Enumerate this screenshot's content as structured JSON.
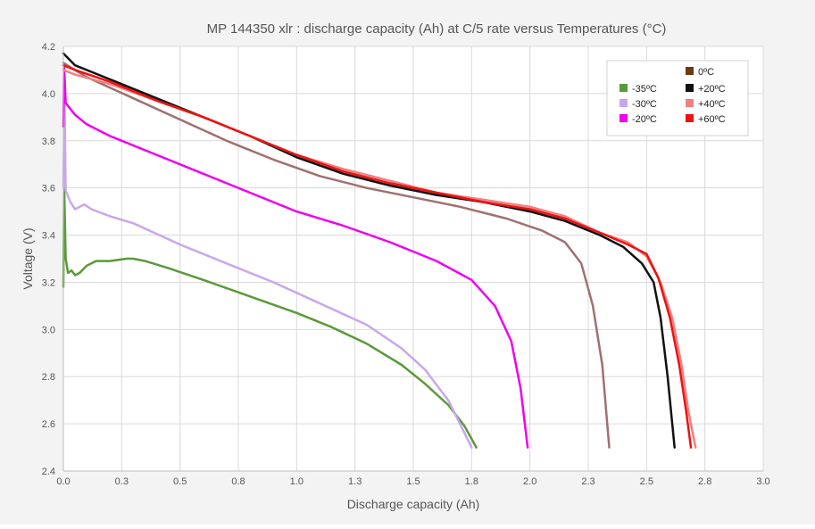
{
  "chart_data": {
    "type": "line",
    "title": "MP 144350 xlr : discharge capacity (Ah) at C/5 rate versus Temperatures (°C)",
    "xlabel": "Discharge capacity (Ah)",
    "ylabel": "Voltage (V)",
    "xlim": [
      0,
      3.0
    ],
    "ylim": [
      2.4,
      4.2
    ],
    "xticks": [
      0.0,
      0.25,
      0.5,
      0.75,
      1.0,
      1.25,
      1.5,
      1.75,
      2.0,
      2.25,
      2.5,
      2.75,
      3.0
    ],
    "xtick_labels": [
      "0.0",
      "0.3",
      "0.5",
      "0.8",
      "1.0",
      "1.3",
      "1.5",
      "1.8",
      "2.0",
      "2.3",
      "2.5",
      "2.8",
      "3.0"
    ],
    "yticks": [
      2.4,
      2.6,
      2.8,
      3.0,
      3.2,
      3.4,
      3.6,
      3.8,
      4.0,
      4.2
    ],
    "ytick_labels": [
      "2.4",
      "2.6",
      "2.8",
      "3.0",
      "3.2",
      "3.4",
      "3.6",
      "3.8",
      "4.0",
      "4.2"
    ],
    "grid": true,
    "legend_position": "top-right",
    "series": [
      {
        "name": "-35ºC",
        "color": "#5a9a3a",
        "points": [
          [
            0,
            3.18
          ],
          [
            0.003,
            3.63
          ],
          [
            0.01,
            3.3
          ],
          [
            0.02,
            3.24
          ],
          [
            0.035,
            3.25
          ],
          [
            0.05,
            3.23
          ],
          [
            0.07,
            3.24
          ],
          [
            0.1,
            3.27
          ],
          [
            0.14,
            3.29
          ],
          [
            0.2,
            3.29
          ],
          [
            0.27,
            3.3
          ],
          [
            0.3,
            3.3
          ],
          [
            0.35,
            3.29
          ],
          [
            0.45,
            3.26
          ],
          [
            0.6,
            3.21
          ],
          [
            0.8,
            3.14
          ],
          [
            1.0,
            3.07
          ],
          [
            1.15,
            3.01
          ],
          [
            1.3,
            2.94
          ],
          [
            1.45,
            2.85
          ],
          [
            1.55,
            2.77
          ],
          [
            1.65,
            2.68
          ],
          [
            1.72,
            2.59
          ],
          [
            1.77,
            2.5
          ]
        ]
      },
      {
        "name": "-30ºC",
        "color": "#c9a6ee",
        "points": [
          [
            0,
            3.6
          ],
          [
            0.005,
            3.98
          ],
          [
            0.01,
            3.59
          ],
          [
            0.03,
            3.54
          ],
          [
            0.05,
            3.51
          ],
          [
            0.07,
            3.52
          ],
          [
            0.09,
            3.53
          ],
          [
            0.12,
            3.51
          ],
          [
            0.2,
            3.48
          ],
          [
            0.3,
            3.45
          ],
          [
            0.5,
            3.36
          ],
          [
            0.7,
            3.28
          ],
          [
            0.9,
            3.2
          ],
          [
            1.1,
            3.11
          ],
          [
            1.3,
            3.02
          ],
          [
            1.45,
            2.92
          ],
          [
            1.55,
            2.83
          ],
          [
            1.65,
            2.7
          ],
          [
            1.7,
            2.6
          ],
          [
            1.75,
            2.5
          ]
        ]
      },
      {
        "name": "-20ºC",
        "color": "#ee00ee",
        "points": [
          [
            0,
            3.86
          ],
          [
            0.003,
            4.12
          ],
          [
            0.01,
            3.96
          ],
          [
            0.05,
            3.91
          ],
          [
            0.1,
            3.87
          ],
          [
            0.2,
            3.82
          ],
          [
            0.4,
            3.74
          ],
          [
            0.6,
            3.66
          ],
          [
            0.8,
            3.58
          ],
          [
            1.0,
            3.5
          ],
          [
            1.2,
            3.44
          ],
          [
            1.4,
            3.37
          ],
          [
            1.6,
            3.29
          ],
          [
            1.75,
            3.21
          ],
          [
            1.85,
            3.1
          ],
          [
            1.92,
            2.95
          ],
          [
            1.96,
            2.75
          ],
          [
            1.99,
            2.5
          ]
        ]
      },
      {
        "name": "0ºC",
        "color": "#a07070",
        "points": [
          [
            0,
            4.13
          ],
          [
            0.1,
            4.07
          ],
          [
            0.3,
            3.98
          ],
          [
            0.5,
            3.89
          ],
          [
            0.7,
            3.8
          ],
          [
            0.9,
            3.72
          ],
          [
            1.1,
            3.65
          ],
          [
            1.3,
            3.6
          ],
          [
            1.5,
            3.56
          ],
          [
            1.7,
            3.52
          ],
          [
            1.9,
            3.47
          ],
          [
            2.05,
            3.42
          ],
          [
            2.15,
            3.37
          ],
          [
            2.22,
            3.28
          ],
          [
            2.27,
            3.1
          ],
          [
            2.31,
            2.85
          ],
          [
            2.34,
            2.5
          ]
        ]
      },
      {
        "name": "+20ºC",
        "color": "#111111",
        "points": [
          [
            0,
            4.17
          ],
          [
            0.05,
            4.12
          ],
          [
            0.2,
            4.06
          ],
          [
            0.4,
            3.98
          ],
          [
            0.6,
            3.9
          ],
          [
            0.8,
            3.82
          ],
          [
            1.0,
            3.73
          ],
          [
            1.2,
            3.66
          ],
          [
            1.4,
            3.61
          ],
          [
            1.6,
            3.57
          ],
          [
            1.8,
            3.54
          ],
          [
            2.0,
            3.5
          ],
          [
            2.15,
            3.46
          ],
          [
            2.3,
            3.4
          ],
          [
            2.4,
            3.35
          ],
          [
            2.48,
            3.28
          ],
          [
            2.53,
            3.2
          ],
          [
            2.56,
            3.05
          ],
          [
            2.59,
            2.8
          ],
          [
            2.62,
            2.5
          ]
        ]
      },
      {
        "name": "+40ºC",
        "color": "#f08080",
        "points": [
          [
            0,
            4.1
          ],
          [
            0.05,
            4.08
          ],
          [
            0.2,
            4.04
          ],
          [
            0.4,
            3.97
          ],
          [
            0.6,
            3.9
          ],
          [
            0.8,
            3.82
          ],
          [
            1.0,
            3.74
          ],
          [
            1.2,
            3.68
          ],
          [
            1.4,
            3.63
          ],
          [
            1.6,
            3.58
          ],
          [
            1.8,
            3.55
          ],
          [
            2.0,
            3.52
          ],
          [
            2.15,
            3.48
          ],
          [
            2.3,
            3.41
          ],
          [
            2.42,
            3.37
          ],
          [
            2.5,
            3.31
          ],
          [
            2.56,
            3.2
          ],
          [
            2.61,
            3.05
          ],
          [
            2.65,
            2.85
          ],
          [
            2.68,
            2.65
          ],
          [
            2.71,
            2.5
          ]
        ]
      },
      {
        "name": "+60ºC",
        "color": "#ee1111",
        "points": [
          [
            0,
            4.12
          ],
          [
            0.05,
            4.1
          ],
          [
            0.2,
            4.05
          ],
          [
            0.4,
            3.97
          ],
          [
            0.6,
            3.9
          ],
          [
            0.8,
            3.82
          ],
          [
            1.0,
            3.74
          ],
          [
            1.2,
            3.67
          ],
          [
            1.4,
            3.62
          ],
          [
            1.6,
            3.58
          ],
          [
            1.8,
            3.54
          ],
          [
            2.0,
            3.51
          ],
          [
            2.15,
            3.47
          ],
          [
            2.3,
            3.41
          ],
          [
            2.42,
            3.36
          ],
          [
            2.5,
            3.32
          ],
          [
            2.55,
            3.22
          ],
          [
            2.6,
            3.05
          ],
          [
            2.64,
            2.85
          ],
          [
            2.67,
            2.65
          ],
          [
            2.69,
            2.5
          ]
        ]
      }
    ],
    "legend": [
      {
        "name": "0ºC",
        "color": "#6b3a12",
        "col": 1,
        "row": 0
      },
      {
        "name": "-35ºC",
        "color": "#5a9a3a",
        "col": 0,
        "row": 1
      },
      {
        "name": "+20ºC",
        "color": "#111111",
        "col": 1,
        "row": 1
      },
      {
        "name": "-30ºC",
        "color": "#c9a6ee",
        "col": 0,
        "row": 2
      },
      {
        "name": "+40ºC",
        "color": "#f08080",
        "col": 1,
        "row": 2
      },
      {
        "name": "-20ºC",
        "color": "#ee00ee",
        "col": 0,
        "row": 3
      },
      {
        "name": "+60ºC",
        "color": "#ee1111",
        "col": 1,
        "row": 3
      }
    ]
  }
}
